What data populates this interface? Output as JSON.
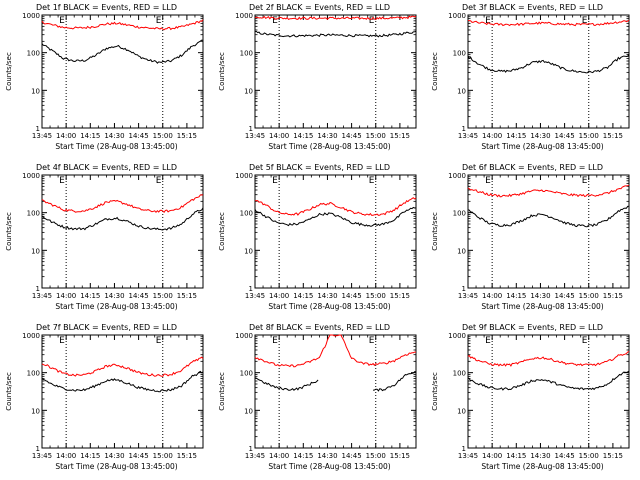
{
  "chart_data": [
    {
      "type": "line",
      "title": "Det 1f BLACK = Events, RED = LLD",
      "xlabel": "Start Time (28-Aug-08 13:45:00)",
      "ylabel": "Counts/sec",
      "x_ticks": [
        "13:45",
        "14:00",
        "14:15",
        "14:30",
        "14:45",
        "15:00",
        "15:15"
      ],
      "y_ticks": [
        "1",
        "10",
        "100",
        "1000"
      ],
      "ylim": [
        1,
        1000
      ],
      "ylog": true,
      "markers": [
        {
          "label": "E",
          "minute": 15
        },
        {
          "label": "E",
          "minute": 75
        }
      ],
      "series": [
        {
          "name": "Events",
          "color": "#000000",
          "values": [
            170,
            110,
            70,
            60,
            62,
            85,
            130,
            150,
            120,
            80,
            62,
            55,
            60,
            85,
            150,
            210
          ]
        },
        {
          "name": "LLD",
          "color": "#ff0000",
          "values": [
            650,
            540,
            470,
            450,
            460,
            500,
            580,
            600,
            540,
            480,
            450,
            430,
            440,
            480,
            580,
            720
          ]
        }
      ]
    },
    {
      "type": "line",
      "title": "Det 2f BLACK = Events, RED = LLD",
      "xlabel": "Start Time (28-Aug-08 13:45:00)",
      "ylabel": "Counts/sec",
      "x_ticks": [
        "13:45",
        "14:00",
        "14:15",
        "14:30",
        "14:45",
        "15:00",
        "15:15"
      ],
      "y_ticks": [
        "1",
        "10",
        "100",
        "1000"
      ],
      "ylim": [
        1,
        1000
      ],
      "ylog": true,
      "markers": [
        {
          "label": "E",
          "minute": 15
        },
        {
          "label": "E",
          "minute": 75
        }
      ],
      "series": [
        {
          "name": "Events",
          "color": "#000000",
          "values": [
            350,
            310,
            290,
            280,
            280,
            285,
            290,
            295,
            290,
            285,
            280,
            280,
            285,
            300,
            330,
            360
          ]
        },
        {
          "name": "LLD",
          "color": "#ff0000",
          "values": [
            900,
            860,
            830,
            820,
            820,
            820,
            820,
            825,
            820,
            820,
            815,
            815,
            820,
            830,
            860,
            900
          ]
        }
      ]
    },
    {
      "type": "line",
      "title": "Det 3f BLACK = Events, RED = LLD",
      "xlabel": "Start Time (28-Aug-08 13:45:00)",
      "ylabel": "Counts/sec",
      "x_ticks": [
        "13:45",
        "14:00",
        "14:15",
        "14:30",
        "14:45",
        "15:00",
        "15:15"
      ],
      "y_ticks": [
        "1",
        "10",
        "100",
        "1000"
      ],
      "ylim": [
        1,
        1000
      ],
      "ylog": true,
      "markers": [
        {
          "label": "E",
          "minute": 15
        },
        {
          "label": "E",
          "minute": 75
        }
      ],
      "series": [
        {
          "name": "Events",
          "color": "#000000",
          "values": [
            80,
            50,
            36,
            32,
            33,
            40,
            55,
            60,
            48,
            36,
            32,
            30,
            32,
            40,
            70,
            85
          ]
        },
        {
          "name": "LLD",
          "color": "#ff0000",
          "values": [
            700,
            620,
            580,
            560,
            560,
            570,
            600,
            610,
            590,
            570,
            560,
            560,
            570,
            600,
            650,
            720
          ]
        }
      ]
    },
    {
      "type": "line",
      "title": "Det 4f BLACK = Events, RED = LLD",
      "xlabel": "Start Time (28-Aug-08 13:45:00)",
      "ylabel": "Counts/sec",
      "x_ticks": [
        "13:45",
        "14:00",
        "14:15",
        "14:30",
        "14:45",
        "15:00",
        "15:15"
      ],
      "y_ticks": [
        "1",
        "10",
        "100",
        "1000"
      ],
      "ylim": [
        1,
        1000
      ],
      "ylog": true,
      "markers": [
        {
          "label": "E",
          "minute": 15
        },
        {
          "label": "E",
          "minute": 75
        }
      ],
      "series": [
        {
          "name": "Events",
          "color": "#000000",
          "values": [
            80,
            55,
            42,
            37,
            38,
            50,
            68,
            72,
            58,
            44,
            38,
            36,
            38,
            50,
            90,
            130
          ]
        },
        {
          "name": "LLD",
          "color": "#ff0000",
          "values": [
            210,
            160,
            120,
            110,
            112,
            140,
            190,
            200,
            165,
            125,
            112,
            108,
            112,
            140,
            220,
            300
          ]
        }
      ]
    },
    {
      "type": "line",
      "title": "Det 5f BLACK = Events, RED = LLD",
      "xlabel": "Start Time (28-Aug-08 13:45:00)",
      "ylabel": "Counts/sec",
      "x_ticks": [
        "13:45",
        "14:00",
        "14:15",
        "14:30",
        "14:45",
        "15:00",
        "15:15"
      ],
      "y_ticks": [
        "1",
        "10",
        "100",
        "1000"
      ],
      "ylim": [
        1,
        1000
      ],
      "ylog": true,
      "markers": [
        {
          "label": "E",
          "minute": 15
        },
        {
          "label": "E",
          "minute": 75
        }
      ],
      "series": [
        {
          "name": "Events",
          "color": "#000000",
          "values": [
            120,
            80,
            55,
            48,
            50,
            65,
            90,
            95,
            75,
            55,
            48,
            46,
            50,
            65,
            110,
            140
          ]
        },
        {
          "name": "LLD",
          "color": "#ff0000",
          "values": [
            220,
            160,
            105,
            90,
            92,
            120,
            165,
            175,
            140,
            105,
            92,
            88,
            92,
            120,
            190,
            250
          ]
        }
      ]
    },
    {
      "type": "line",
      "title": "Det 6f BLACK = Events, RED = LLD",
      "xlabel": "Start Time (28-Aug-08 13:45:00)",
      "ylabel": "Counts/sec",
      "x_ticks": [
        "13:45",
        "14:00",
        "14:15",
        "14:30",
        "14:45",
        "15:00",
        "15:15"
      ],
      "y_ticks": [
        "1",
        "10",
        "100",
        "1000"
      ],
      "ylim": [
        1,
        1000
      ],
      "ylog": true,
      "markers": [
        {
          "label": "E",
          "minute": 15
        },
        {
          "label": "E",
          "minute": 75
        }
      ],
      "series": [
        {
          "name": "Events",
          "color": "#000000",
          "values": [
            120,
            75,
            52,
            46,
            48,
            62,
            85,
            90,
            72,
            54,
            46,
            44,
            48,
            65,
            110,
            150
          ]
        },
        {
          "name": "LLD",
          "color": "#ff0000",
          "values": [
            450,
            360,
            300,
            280,
            285,
            320,
            380,
            390,
            350,
            310,
            290,
            285,
            295,
            330,
            420,
            520
          ]
        }
      ]
    },
    {
      "type": "line",
      "title": "Det 7f BLACK = Events, RED = LLD",
      "xlabel": "Start Time (28-Aug-08 13:45:00)",
      "ylabel": "Counts/sec",
      "x_ticks": [
        "13:45",
        "14:00",
        "14:15",
        "14:30",
        "14:45",
        "15:00",
        "15:15"
      ],
      "y_ticks": [
        "1",
        "10",
        "100",
        "1000"
      ],
      "ylim": [
        1,
        1000
      ],
      "ylog": true,
      "markers": [
        {
          "label": "E",
          "minute": 15
        },
        {
          "label": "E",
          "minute": 75
        }
      ],
      "series": [
        {
          "name": "Events",
          "color": "#000000",
          "values": [
            70,
            48,
            38,
            34,
            35,
            45,
            62,
            65,
            52,
            40,
            35,
            33,
            35,
            45,
            80,
            110
          ]
        },
        {
          "name": "LLD",
          "color": "#ff0000",
          "values": [
            180,
            130,
            95,
            85,
            88,
            110,
            150,
            160,
            130,
            100,
            88,
            85,
            90,
            115,
            190,
            250
          ]
        }
      ]
    },
    {
      "type": "line",
      "title": "Det 8f BLACK = Events, RED = LLD",
      "xlabel": "Start Time (28-Aug-08 13:45:00)",
      "ylabel": "Counts/sec",
      "x_ticks": [
        "13:45",
        "14:00",
        "14:15",
        "14:30",
        "14:45",
        "15:00",
        "15:15"
      ],
      "y_ticks": [
        "1",
        "10",
        "100",
        "1000"
      ],
      "ylim": [
        1,
        1000
      ],
      "ylog": true,
      "markers": [
        {
          "label": "E",
          "minute": 15
        },
        {
          "label": "E",
          "minute": 75
        }
      ],
      "series": [
        {
          "name": "Events",
          "color": "#000000",
          "values": [
            75,
            52,
            40,
            36,
            37,
            48,
            65,
            null,
            null,
            null,
            null,
            34,
            36,
            48,
            85,
            110
          ]
        },
        {
          "name": "LLD",
          "color": "#ff0000",
          "values": [
            260,
            200,
            160,
            150,
            155,
            190,
            250,
            1000,
            1000,
            240,
            175,
            165,
            175,
            210,
            300,
            360
          ]
        }
      ]
    },
    {
      "type": "line",
      "title": "Det 9f BLACK = Events, RED = LLD",
      "xlabel": "Start Time (28-Aug-08 13:45:00)",
      "ylabel": "Counts/sec",
      "x_ticks": [
        "13:45",
        "14:00",
        "14:15",
        "14:30",
        "14:45",
        "15:00",
        "15:15"
      ],
      "y_ticks": [
        "1",
        "10",
        "100",
        "1000"
      ],
      "ylim": [
        1,
        1000
      ],
      "ylog": true,
      "markers": [
        {
          "label": "E",
          "minute": 15
        },
        {
          "label": "E",
          "minute": 75
        }
      ],
      "series": [
        {
          "name": "Events",
          "color": "#000000",
          "values": [
            70,
            50,
            40,
            37,
            38,
            47,
            62,
            65,
            54,
            43,
            38,
            37,
            39,
            50,
            85,
            115
          ]
        },
        {
          "name": "LLD",
          "color": "#ff0000",
          "values": [
            280,
            210,
            170,
            160,
            162,
            190,
            240,
            250,
            215,
            180,
            165,
            160,
            165,
            195,
            280,
            350
          ]
        }
      ]
    }
  ]
}
